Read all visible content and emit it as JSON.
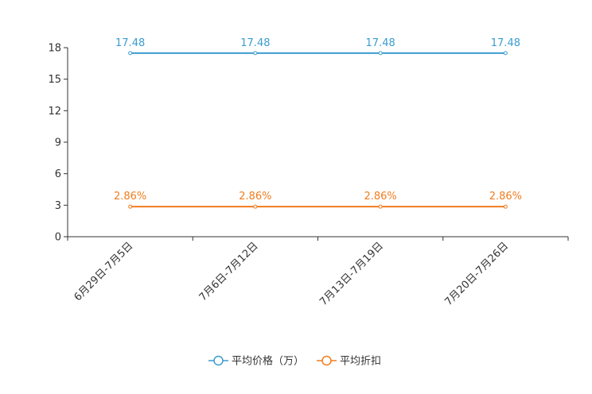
{
  "chart_data": {
    "type": "line",
    "categories": [
      "6月29日-7月5日",
      "7月6日-7月12日",
      "7月13日-7月19日",
      "7月20日-7月26日"
    ],
    "series": [
      {
        "name": "平均价格（万）",
        "values": [
          17.48,
          17.48,
          17.48,
          17.48
        ],
        "labels": [
          "17.48",
          "17.48",
          "17.48",
          "17.48"
        ],
        "color": "#3b9ccf"
      },
      {
        "name": "平均折扣",
        "values": [
          2.86,
          2.86,
          2.86,
          2.86
        ],
        "labels": [
          "2.86%",
          "2.86%",
          "2.86%",
          "2.86%"
        ],
        "color": "#f07d1e"
      }
    ],
    "yticks": [
      "0",
      "3",
      "6",
      "9",
      "12",
      "15",
      "18"
    ],
    "ylim": [
      0,
      18
    ],
    "title": "",
    "xlabel": "",
    "ylabel": "",
    "legend_position": "bottom-center",
    "grid": false
  }
}
